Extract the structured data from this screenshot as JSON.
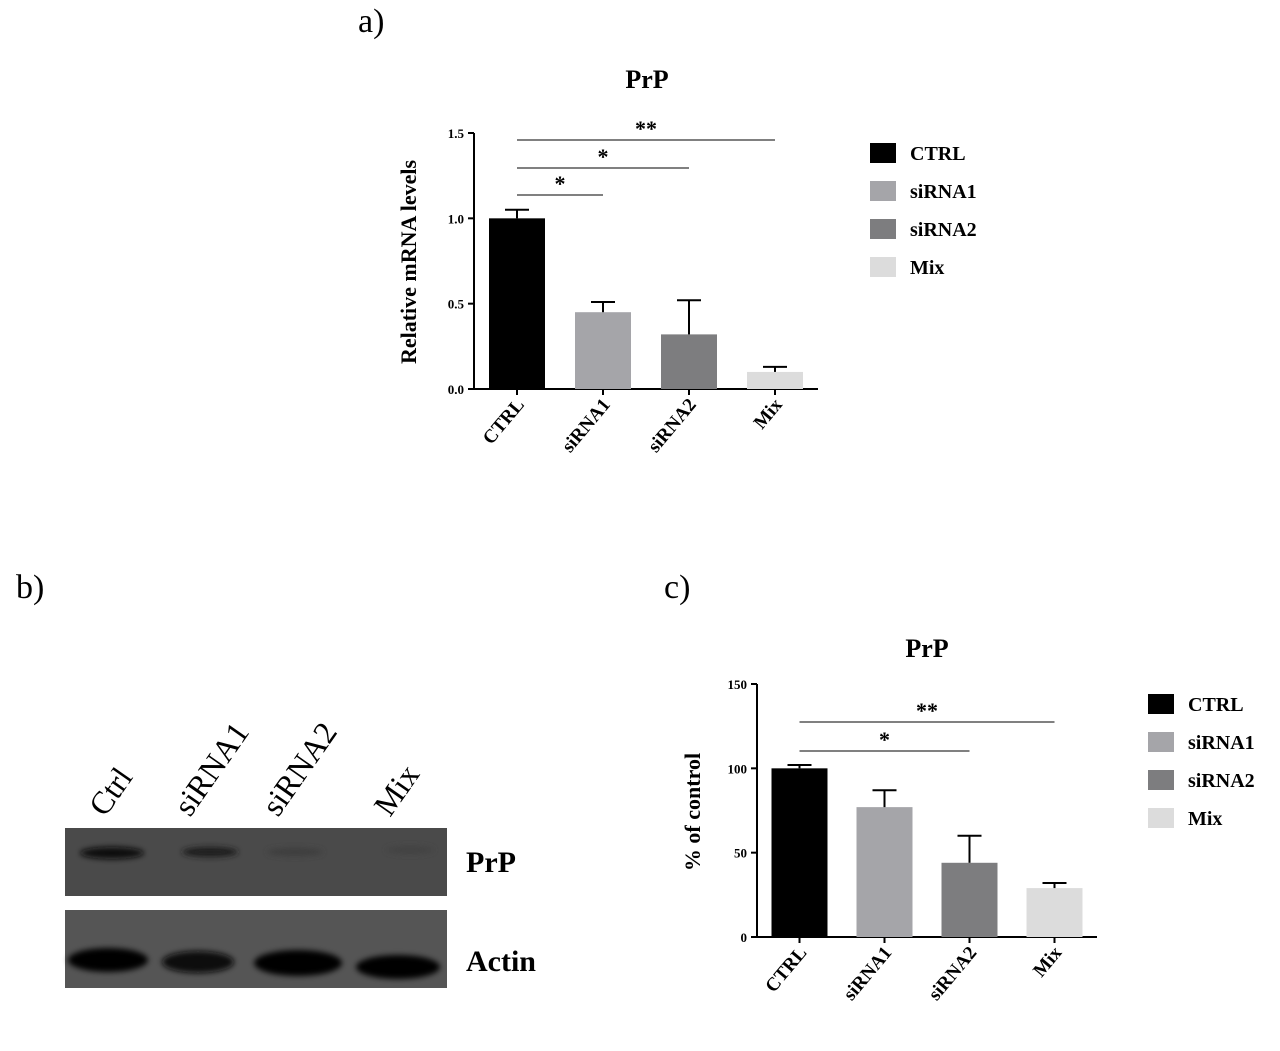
{
  "panels": {
    "a": "a)",
    "b": "b)",
    "c": "c)"
  },
  "colors": {
    "CTRL": "#000000",
    "siRNA1": "#a5a5a9",
    "siRNA2": "#7d7d7f",
    "Mix": "#dcdcdc"
  },
  "chart_data": [
    {
      "id": "a",
      "type": "bar",
      "title": "PrP",
      "ylabel": "Relative mRNA levels",
      "xlabel": "",
      "categories": [
        "CTRL",
        "siRNA1",
        "siRNA2",
        "Mix"
      ],
      "values": [
        1.0,
        0.45,
        0.32,
        0.1
      ],
      "errors": [
        0.05,
        0.06,
        0.2,
        0.03
      ],
      "ylim": [
        0,
        1.5
      ],
      "yticks": [
        "0.0",
        "0.5",
        "1.0",
        "1.5"
      ],
      "yticks_values": [
        0,
        0.5,
        1.0,
        1.5
      ],
      "legend": [
        "CTRL",
        "siRNA1",
        "siRNA2",
        "Mix"
      ],
      "legend_position": "right",
      "significance": [
        {
          "from": 0,
          "to": 1,
          "label": "*"
        },
        {
          "from": 0,
          "to": 2,
          "label": "*"
        },
        {
          "from": 0,
          "to": 3,
          "label": "**"
        }
      ]
    },
    {
      "id": "c",
      "type": "bar",
      "title": "PrP",
      "ylabel": "% of control",
      "xlabel": "",
      "categories": [
        "CTRL",
        "siRNA1",
        "siRNA2",
        "Mix"
      ],
      "values": [
        100,
        77,
        44,
        29
      ],
      "errors": [
        2,
        10,
        16,
        3
      ],
      "ylim": [
        0,
        150
      ],
      "yticks": [
        "0",
        "50",
        "100",
        "150"
      ],
      "yticks_values": [
        0,
        50,
        100,
        150
      ],
      "legend": [
        "CTRL",
        "siRNA1",
        "siRNA2",
        "Mix"
      ],
      "legend_position": "right",
      "significance": [
        {
          "from": 0,
          "to": 2,
          "label": "*"
        },
        {
          "from": 0,
          "to": 3,
          "label": "**"
        }
      ]
    }
  ],
  "blot": {
    "lanes": [
      "Ctrl",
      "siRNA1",
      "siRNA2",
      "Mix"
    ],
    "bands": [
      "PrP",
      "Actin"
    ]
  }
}
